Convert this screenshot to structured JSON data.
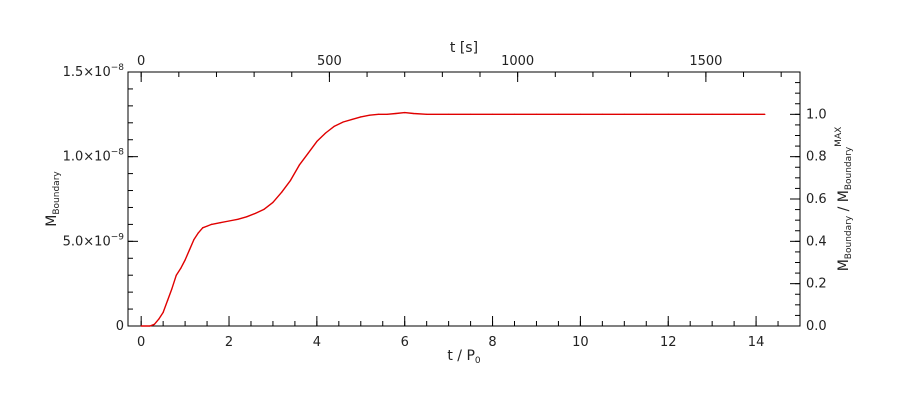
{
  "chart_data": {
    "type": "line",
    "xlabel": "t / P",
    "xlabel_sub": "0",
    "x2label": "t [s]",
    "ylabel": "M",
    "ylabel_sub": "Boundary",
    "y2label_parts": [
      "M",
      "Boundary",
      " / M",
      "Boundary",
      "MAX"
    ],
    "xlim": [
      -0.3,
      15
    ],
    "ylim": [
      0,
      1.5e-08
    ],
    "x2lim": [
      -35,
      1750
    ],
    "y2lim": [
      0,
      1.2
    ],
    "x_ticks": [
      {
        "value": 0,
        "label": "0"
      },
      {
        "value": 2,
        "label": "2"
      },
      {
        "value": 4,
        "label": "4"
      },
      {
        "value": 6,
        "label": "6"
      },
      {
        "value": 8,
        "label": "8"
      },
      {
        "value": 10,
        "label": "10"
      },
      {
        "value": 12,
        "label": "12"
      },
      {
        "value": 14,
        "label": "14"
      }
    ],
    "x2_ticks": [
      {
        "value": 0,
        "label": "0"
      },
      {
        "value": 500,
        "label": "500"
      },
      {
        "value": 1000,
        "label": "1000"
      },
      {
        "value": 1500,
        "label": "1500"
      }
    ],
    "y_ticks": [
      {
        "value": 0,
        "mantissa": "0",
        "exp": ""
      },
      {
        "value": 5e-09,
        "mantissa": "5.0×10",
        "exp": "−9"
      },
      {
        "value": 1e-08,
        "mantissa": "1.0×10",
        "exp": "−8"
      },
      {
        "value": 1.5e-08,
        "mantissa": "1.5×10",
        "exp": "−8"
      }
    ],
    "y2_ticks": [
      {
        "value": 0.0,
        "label": "0.0"
      },
      {
        "value": 0.2,
        "label": "0.2"
      },
      {
        "value": 0.4,
        "label": "0.4"
      },
      {
        "value": 0.6,
        "label": "0.6"
      },
      {
        "value": 0.8,
        "label": "0.8"
      },
      {
        "value": 1.0,
        "label": "1.0"
      }
    ],
    "series": [
      {
        "color": "#e00000",
        "x": [
          0.0,
          0.2,
          0.3,
          0.4,
          0.5,
          0.6,
          0.7,
          0.8,
          0.9,
          1.0,
          1.1,
          1.2,
          1.3,
          1.4,
          1.5,
          1.6,
          1.8,
          2.0,
          2.2,
          2.4,
          2.6,
          2.8,
          3.0,
          3.2,
          3.4,
          3.6,
          3.8,
          4.0,
          4.2,
          4.4,
          4.6,
          4.8,
          5.0,
          5.2,
          5.4,
          5.6,
          5.8,
          6.0,
          6.2,
          6.5,
          7.0,
          7.5,
          8.0,
          8.5,
          9.0,
          9.5,
          10.0,
          10.5,
          11.0,
          11.5,
          12.0,
          12.5,
          13.0,
          13.5,
          14.0,
          14.2
        ],
        "y": [
          0.0,
          0.0,
          1e-10,
          4e-10,
          8e-10,
          1.5e-09,
          2.2e-09,
          3e-09,
          3.4e-09,
          3.9e-09,
          4.5e-09,
          5.1e-09,
          5.5e-09,
          5.8e-09,
          5.9e-09,
          6e-09,
          6.1e-09,
          6.2e-09,
          6.3e-09,
          6.45e-09,
          6.65e-09,
          6.9e-09,
          7.3e-09,
          7.9e-09,
          8.6e-09,
          9.5e-09,
          1.02e-08,
          1.09e-08,
          1.14e-08,
          1.18e-08,
          1.205e-08,
          1.22e-08,
          1.235e-08,
          1.245e-08,
          1.25e-08,
          1.25e-08,
          1.255e-08,
          1.26e-08,
          1.255e-08,
          1.25e-08,
          1.25e-08,
          1.25e-08,
          1.25e-08,
          1.25e-08,
          1.25e-08,
          1.25e-08,
          1.25e-08,
          1.25e-08,
          1.25e-08,
          1.25e-08,
          1.25e-08,
          1.25e-08,
          1.25e-08,
          1.25e-08,
          1.25e-08,
          1.25e-08
        ]
      }
    ]
  }
}
